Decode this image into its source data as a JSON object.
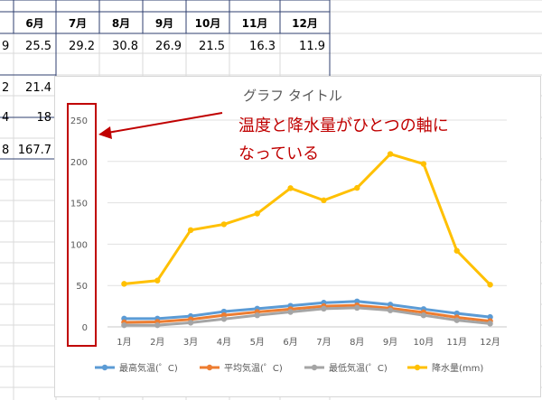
{
  "spreadsheet": {
    "headers": [
      "6月",
      "7月",
      "8月",
      "9月",
      "10月",
      "11月",
      "12月"
    ],
    "rows": [
      {
        "prefix": "9",
        "values": [
          "25.5",
          "29.2",
          "30.8",
          "26.9",
          "21.5",
          "16.3",
          "11.9"
        ]
      },
      {
        "prefix": "2",
        "values": [
          "21.4"
        ]
      },
      {
        "prefix": "4",
        "values": [
          "18"
        ]
      },
      {
        "prefix": "8",
        "values": [
          "167.7"
        ]
      }
    ]
  },
  "callout": {
    "line1": "温度と降水量がひとつの軸に",
    "line2": "なっている",
    "color": "#c00000"
  },
  "chart_data": {
    "type": "line",
    "title": "グラフ タイトル",
    "categories": [
      "1月",
      "2月",
      "3月",
      "4月",
      "5月",
      "6月",
      "7月",
      "8月",
      "9月",
      "10月",
      "11月",
      "12月"
    ],
    "ylim": [
      0,
      250
    ],
    "yticks": [
      "0",
      "50",
      "100",
      "150",
      "200",
      "250"
    ],
    "grid": true,
    "legend_position": "bottom",
    "series": [
      {
        "name": "最高気温(゜C)",
        "color": "#5b9bd5",
        "values": [
          10,
          10,
          13,
          18.5,
          22,
          25.5,
          29.2,
          30.8,
          26.9,
          21.5,
          16.3,
          11.9
        ]
      },
      {
        "name": "平均気温(゜C)",
        "color": "#ed7d31",
        "values": [
          5.5,
          6,
          9,
          14,
          18,
          21.4,
          25,
          26,
          22.5,
          17.5,
          11.5,
          7
        ]
      },
      {
        "name": "最低気温(゜C)",
        "color": "#a5a5a5",
        "values": [
          2,
          2,
          5,
          9.5,
          14,
          18,
          22,
          23,
          20,
          14,
          8,
          4
        ]
      },
      {
        "name": "降水量(mm)",
        "color": "#ffc000",
        "values": [
          52,
          56,
          117,
          124,
          137,
          167.7,
          153,
          168,
          209,
          197,
          92,
          51
        ]
      }
    ]
  }
}
